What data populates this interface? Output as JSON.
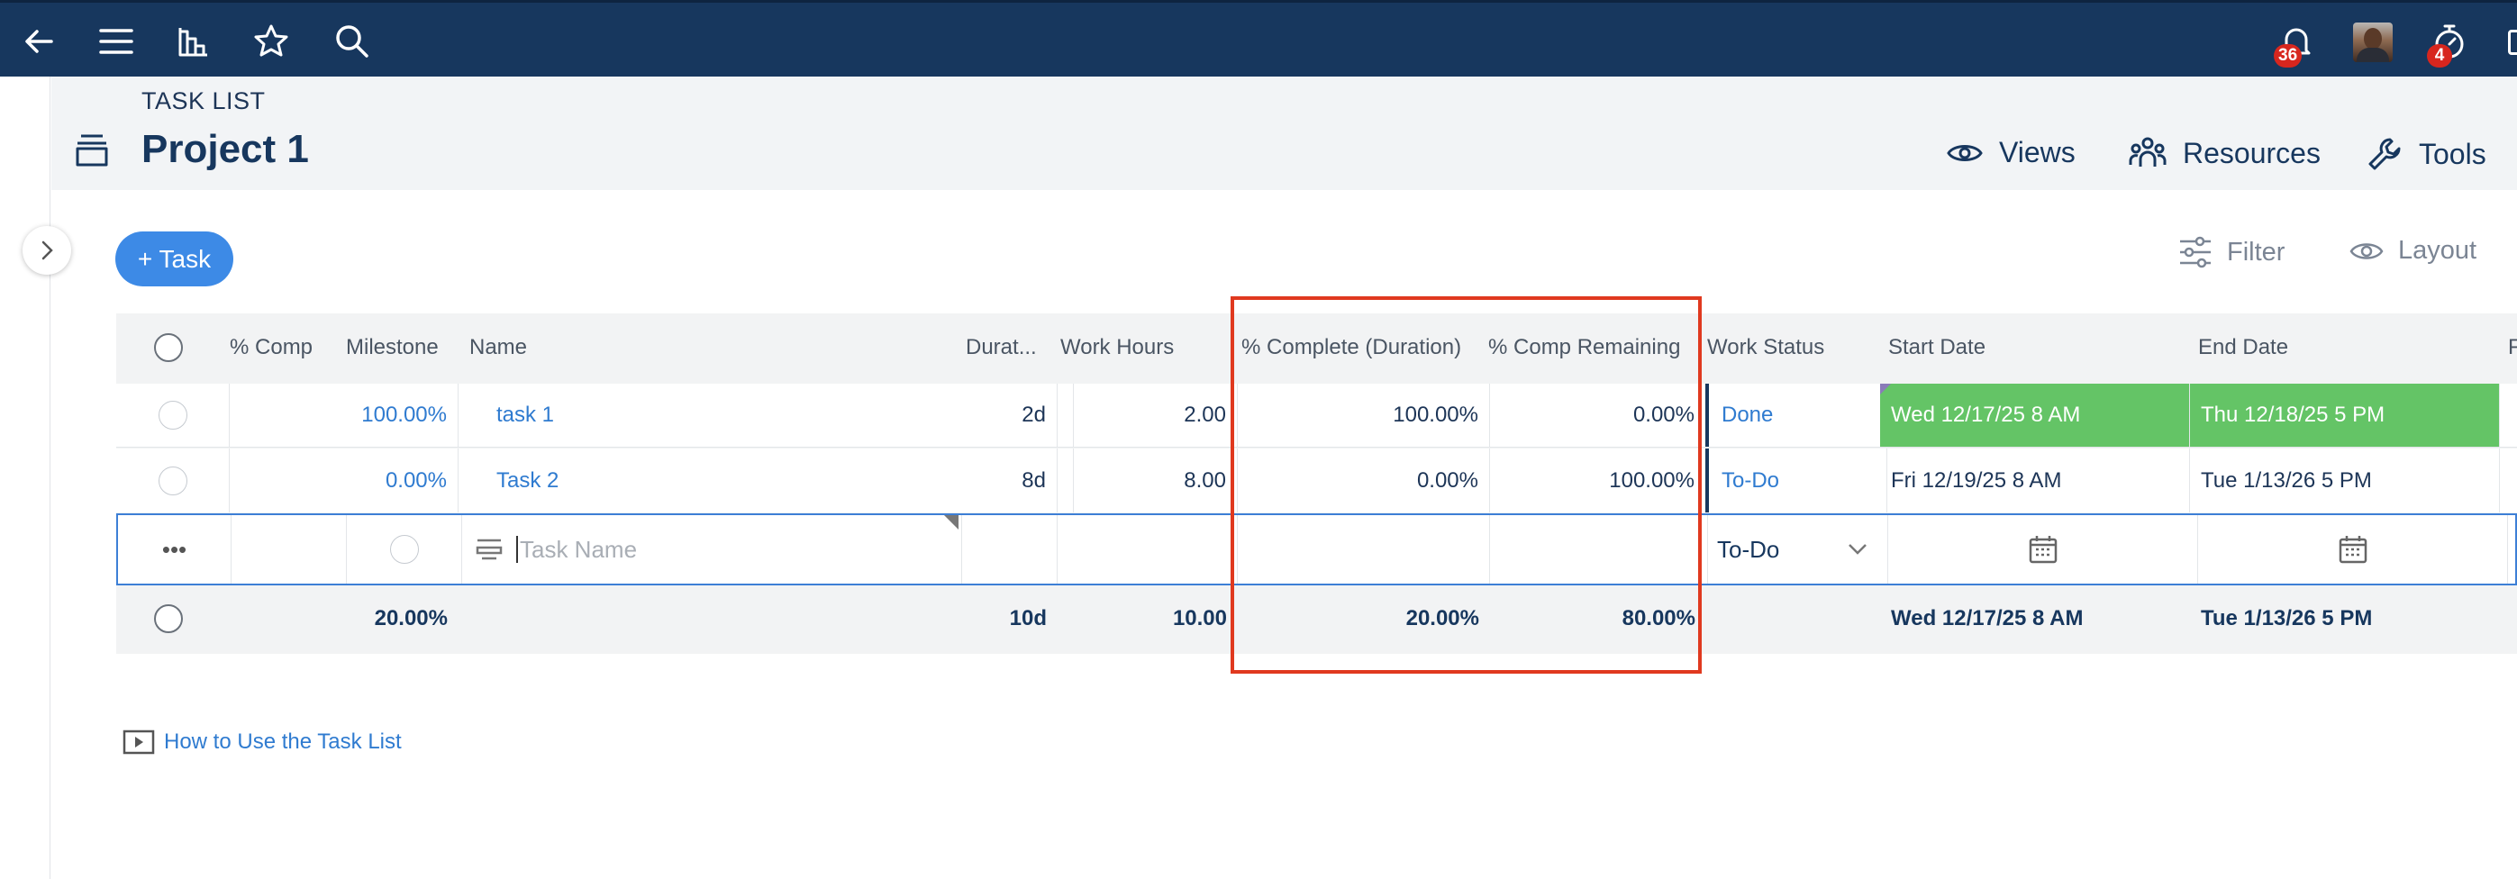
{
  "topbar": {
    "notifications_count": "36",
    "timer_count": "4"
  },
  "header": {
    "breadcrumb": "TASK LIST",
    "project_title": "Project 1",
    "views_label": "Views",
    "resources_label": "Resources",
    "tools_label": "Tools"
  },
  "toolbar": {
    "add_task_label": "+ Task",
    "filter_label": "Filter",
    "layout_label": "Layout"
  },
  "columns": {
    "pct_comp": "% Comp",
    "milestone": "Milestone",
    "name": "Name",
    "duration": "Durat...",
    "work_hours": "Work Hours",
    "pct_complete_duration": "% Complete (Duration)",
    "pct_comp_remaining": "% Comp Remaining",
    "work_status": "Work Status",
    "start_date": "Start Date",
    "end_date": "End Date",
    "next_col": "F"
  },
  "rows": [
    {
      "pct_comp": "100.00%",
      "name": "task 1",
      "duration": "2d",
      "work_hours": "2.00",
      "pct_complete_duration": "100.00%",
      "pct_comp_remaining": "0.00%",
      "work_status": "Done",
      "start_date": "Wed 12/17/25 8 AM",
      "end_date": "Thu 12/18/25 5 PM"
    },
    {
      "pct_comp": "0.00%",
      "name": "Task 2",
      "duration": "8d",
      "work_hours": "8.00",
      "pct_complete_duration": "0.00%",
      "pct_comp_remaining": "100.00%",
      "work_status": "To-Do",
      "start_date": "Fri 12/19/25 8 AM",
      "end_date": "Tue 1/13/26 5 PM"
    }
  ],
  "new_row": {
    "more_label": "•••",
    "name_placeholder": "Task Name",
    "work_status": "To-Do"
  },
  "totals": {
    "pct_comp": "20.00%",
    "duration": "10d",
    "work_hours": "10.00",
    "pct_complete_duration": "20.00%",
    "pct_comp_remaining": "80.00%",
    "start_date": "Wed 12/17/25 8 AM",
    "end_date": "Tue 1/13/26 5 PM"
  },
  "help_link": "How to Use the Task List",
  "colors": {
    "topbar": "#17375e",
    "accent": "#3d8ae6",
    "done_green": "#64c466",
    "highlight_red": "#e0391f"
  }
}
